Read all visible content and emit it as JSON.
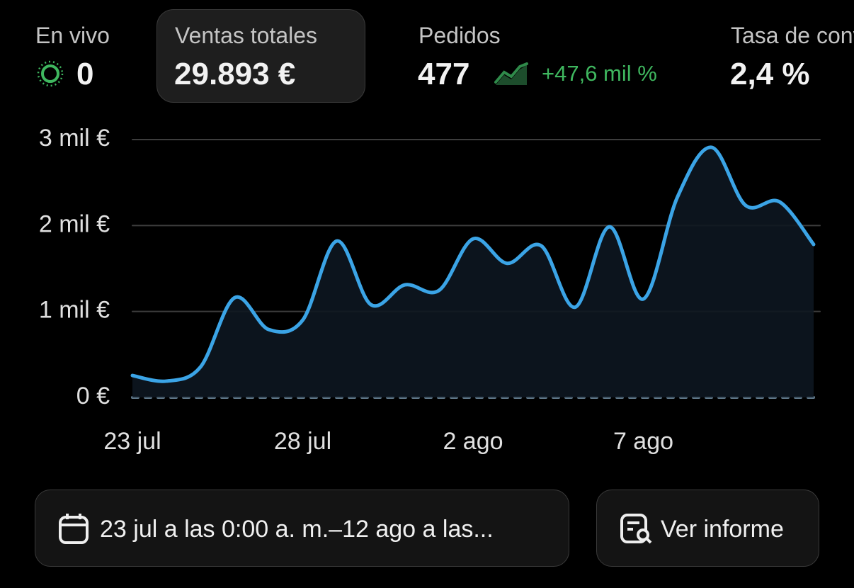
{
  "metrics": [
    {
      "label": "En vivo",
      "value": "0"
    },
    {
      "label": "Ventas totales",
      "value": "29.893 €"
    },
    {
      "label": "Pedidos",
      "value": "477",
      "change": "+47,6 mil %"
    },
    {
      "label": "Tasa de conversión",
      "value": "2,4 %"
    }
  ],
  "chart_data": {
    "type": "line",
    "categories": [
      "23 jul",
      null,
      null,
      null,
      null,
      "28 jul",
      null,
      null,
      null,
      null,
      "2 ago",
      null,
      null,
      null,
      null,
      "7 ago",
      null,
      null,
      null,
      null,
      null
    ],
    "series": [
      {
        "color": "#3ba4e6",
        "values": [
          255,
          190,
          355,
          1160,
          790,
          900,
          1820,
          1080,
          1310,
          1245,
          1845,
          1560,
          1765,
          1050,
          1985,
          1145,
          2330,
          2910,
          2235,
          2275,
          1780
        ]
      }
    ],
    "ylim": [
      0,
      3000
    ],
    "yticks": [
      {
        "value": 0,
        "label": "0 €"
      },
      {
        "value": 1000,
        "label": "1 mil €"
      },
      {
        "value": 2000,
        "label": "2 mil €"
      },
      {
        "value": 3000,
        "label": "3 mil €"
      }
    ],
    "grid": true
  },
  "footer": {
    "date_range": "23 jul a las 0:00 a. m.–12 ago a las...",
    "report_button": "Ver informe"
  }
}
